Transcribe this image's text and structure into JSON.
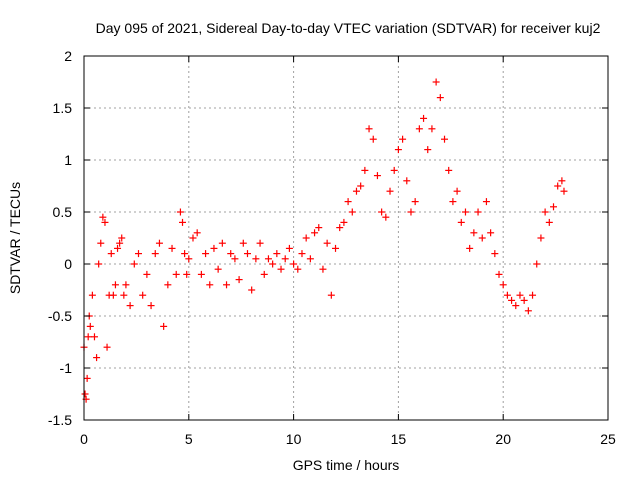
{
  "chart_data": {
    "type": "scatter",
    "title": "Day 095 of 2021, Sidereal Day-to-day VTEC variation (SDTVAR) for receiver kuj2",
    "xlabel": "GPS time / hours",
    "ylabel": "SDTVAR / TECUs",
    "xlim": [
      0,
      25
    ],
    "ylim": [
      -1.5,
      2
    ],
    "xticks": [
      0,
      5,
      10,
      15,
      20,
      25
    ],
    "xtick_labels": [
      "0",
      "5",
      "10",
      "15",
      "20",
      "25"
    ],
    "yticks": [
      -1.5,
      -1,
      -0.5,
      0,
      0.5,
      1,
      1.5,
      2
    ],
    "ytick_labels": [
      "-1.5",
      "-1",
      "-0.5",
      "0",
      "0.5",
      "1",
      "1.5",
      "2"
    ],
    "grid": true,
    "marker": "+",
    "series": [
      {
        "name": "SDTVAR",
        "color": "#ff0000",
        "x": [
          0.0,
          0.05,
          0.1,
          0.15,
          0.2,
          0.25,
          0.3,
          0.4,
          0.5,
          0.6,
          0.7,
          0.8,
          0.9,
          1.0,
          1.1,
          1.2,
          1.3,
          1.4,
          1.5,
          1.6,
          1.7,
          1.8,
          1.9,
          2.0,
          2.2,
          2.4,
          2.6,
          2.8,
          3.0,
          3.2,
          3.4,
          3.6,
          3.8,
          4.0,
          4.2,
          4.4,
          4.6,
          4.7,
          4.8,
          4.9,
          5.0,
          5.2,
          5.4,
          5.6,
          5.8,
          6.0,
          6.2,
          6.4,
          6.6,
          6.8,
          7.0,
          7.2,
          7.4,
          7.6,
          7.8,
          8.0,
          8.2,
          8.4,
          8.6,
          8.8,
          9.0,
          9.2,
          9.4,
          9.6,
          9.8,
          10.0,
          10.2,
          10.4,
          10.6,
          10.8,
          11.0,
          11.2,
          11.4,
          11.6,
          11.8,
          12.0,
          12.2,
          12.4,
          12.6,
          12.8,
          13.0,
          13.2,
          13.4,
          13.6,
          13.8,
          14.0,
          14.2,
          14.4,
          14.6,
          14.8,
          15.0,
          15.2,
          15.4,
          15.6,
          15.8,
          16.0,
          16.2,
          16.4,
          16.6,
          16.8,
          17.0,
          17.2,
          17.4,
          17.6,
          17.8,
          18.0,
          18.2,
          18.4,
          18.6,
          18.8,
          19.0,
          19.2,
          19.4,
          19.6,
          19.8,
          20.0,
          20.2,
          20.4,
          20.6,
          20.8,
          21.0,
          21.2,
          21.4,
          21.6,
          21.8,
          22.0,
          22.2,
          22.4,
          22.6,
          22.8,
          22.9
        ],
        "y": [
          -0.8,
          -1.25,
          -1.3,
          -1.1,
          -0.7,
          -0.5,
          -0.6,
          -0.3,
          -0.7,
          -0.9,
          0.0,
          0.2,
          0.45,
          0.4,
          -0.8,
          -0.3,
          0.1,
          -0.3,
          -0.2,
          0.15,
          0.2,
          0.25,
          -0.3,
          -0.2,
          -0.4,
          0.0,
          0.1,
          -0.3,
          -0.1,
          -0.4,
          0.1,
          0.2,
          -0.6,
          -0.2,
          0.15,
          -0.1,
          0.5,
          0.4,
          0.1,
          -0.1,
          0.05,
          0.25,
          0.3,
          -0.1,
          0.1,
          -0.2,
          0.15,
          -0.05,
          0.2,
          -0.2,
          0.1,
          0.05,
          -0.15,
          0.2,
          0.1,
          -0.25,
          0.05,
          0.2,
          -0.1,
          0.05,
          0.0,
          0.1,
          -0.05,
          0.05,
          0.15,
          0.0,
          -0.05,
          0.1,
          0.25,
          0.05,
          0.3,
          0.35,
          -0.05,
          0.2,
          -0.3,
          0.15,
          0.35,
          0.4,
          0.6,
          0.5,
          0.7,
          0.75,
          0.9,
          1.3,
          1.2,
          0.85,
          0.5,
          0.45,
          0.7,
          0.9,
          1.1,
          1.2,
          0.8,
          0.5,
          0.6,
          1.3,
          1.4,
          1.1,
          1.3,
          1.75,
          1.6,
          1.2,
          0.9,
          0.6,
          0.7,
          0.4,
          0.5,
          0.15,
          0.3,
          0.5,
          0.25,
          0.6,
          0.3,
          0.1,
          -0.1,
          -0.2,
          -0.3,
          -0.35,
          -0.4,
          -0.3,
          -0.35,
          -0.45,
          -0.3,
          0.0,
          0.25,
          0.5,
          0.4,
          0.55,
          0.75,
          0.8,
          0.7
        ]
      }
    ]
  }
}
